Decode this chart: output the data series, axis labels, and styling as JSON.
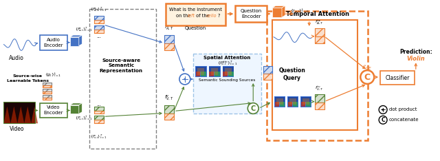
{
  "bg_color": "#ffffff",
  "blue": "#4472c4",
  "green": "#548235",
  "orange": "#ed7d31",
  "light_blue": "#9dc3e6",
  "gray": "#808080",
  "question_text_line1": "What is the instrument",
  "question_text_line2": "on the left of the cello?",
  "prediction_label": "Prediction:",
  "prediction_value": "Violin",
  "audio_label": "Audio",
  "video_label": "Video",
  "audio_encoder_label": "Audio\nEncoder",
  "video_encoder_label": "Video\nEncoder",
  "source_aware_label": "Source-aware\nSemantic\nRepresentation",
  "spatial_attn_label": "Spatial Attention",
  "semantic_sounding_label": "Semantic Sounding Sources",
  "temporal_attn_label": "Temporal Attention",
  "question_query_label": "Question\nQuery",
  "classifier_label": "Classifier",
  "question_box_label": "Question",
  "question_encoder_label": "Question\nEncoder",
  "dot_product_label": "dot product",
  "concatenate_label": "concatenate",
  "sw_learnable_label": "Source-wise\nLearnable Tokens"
}
